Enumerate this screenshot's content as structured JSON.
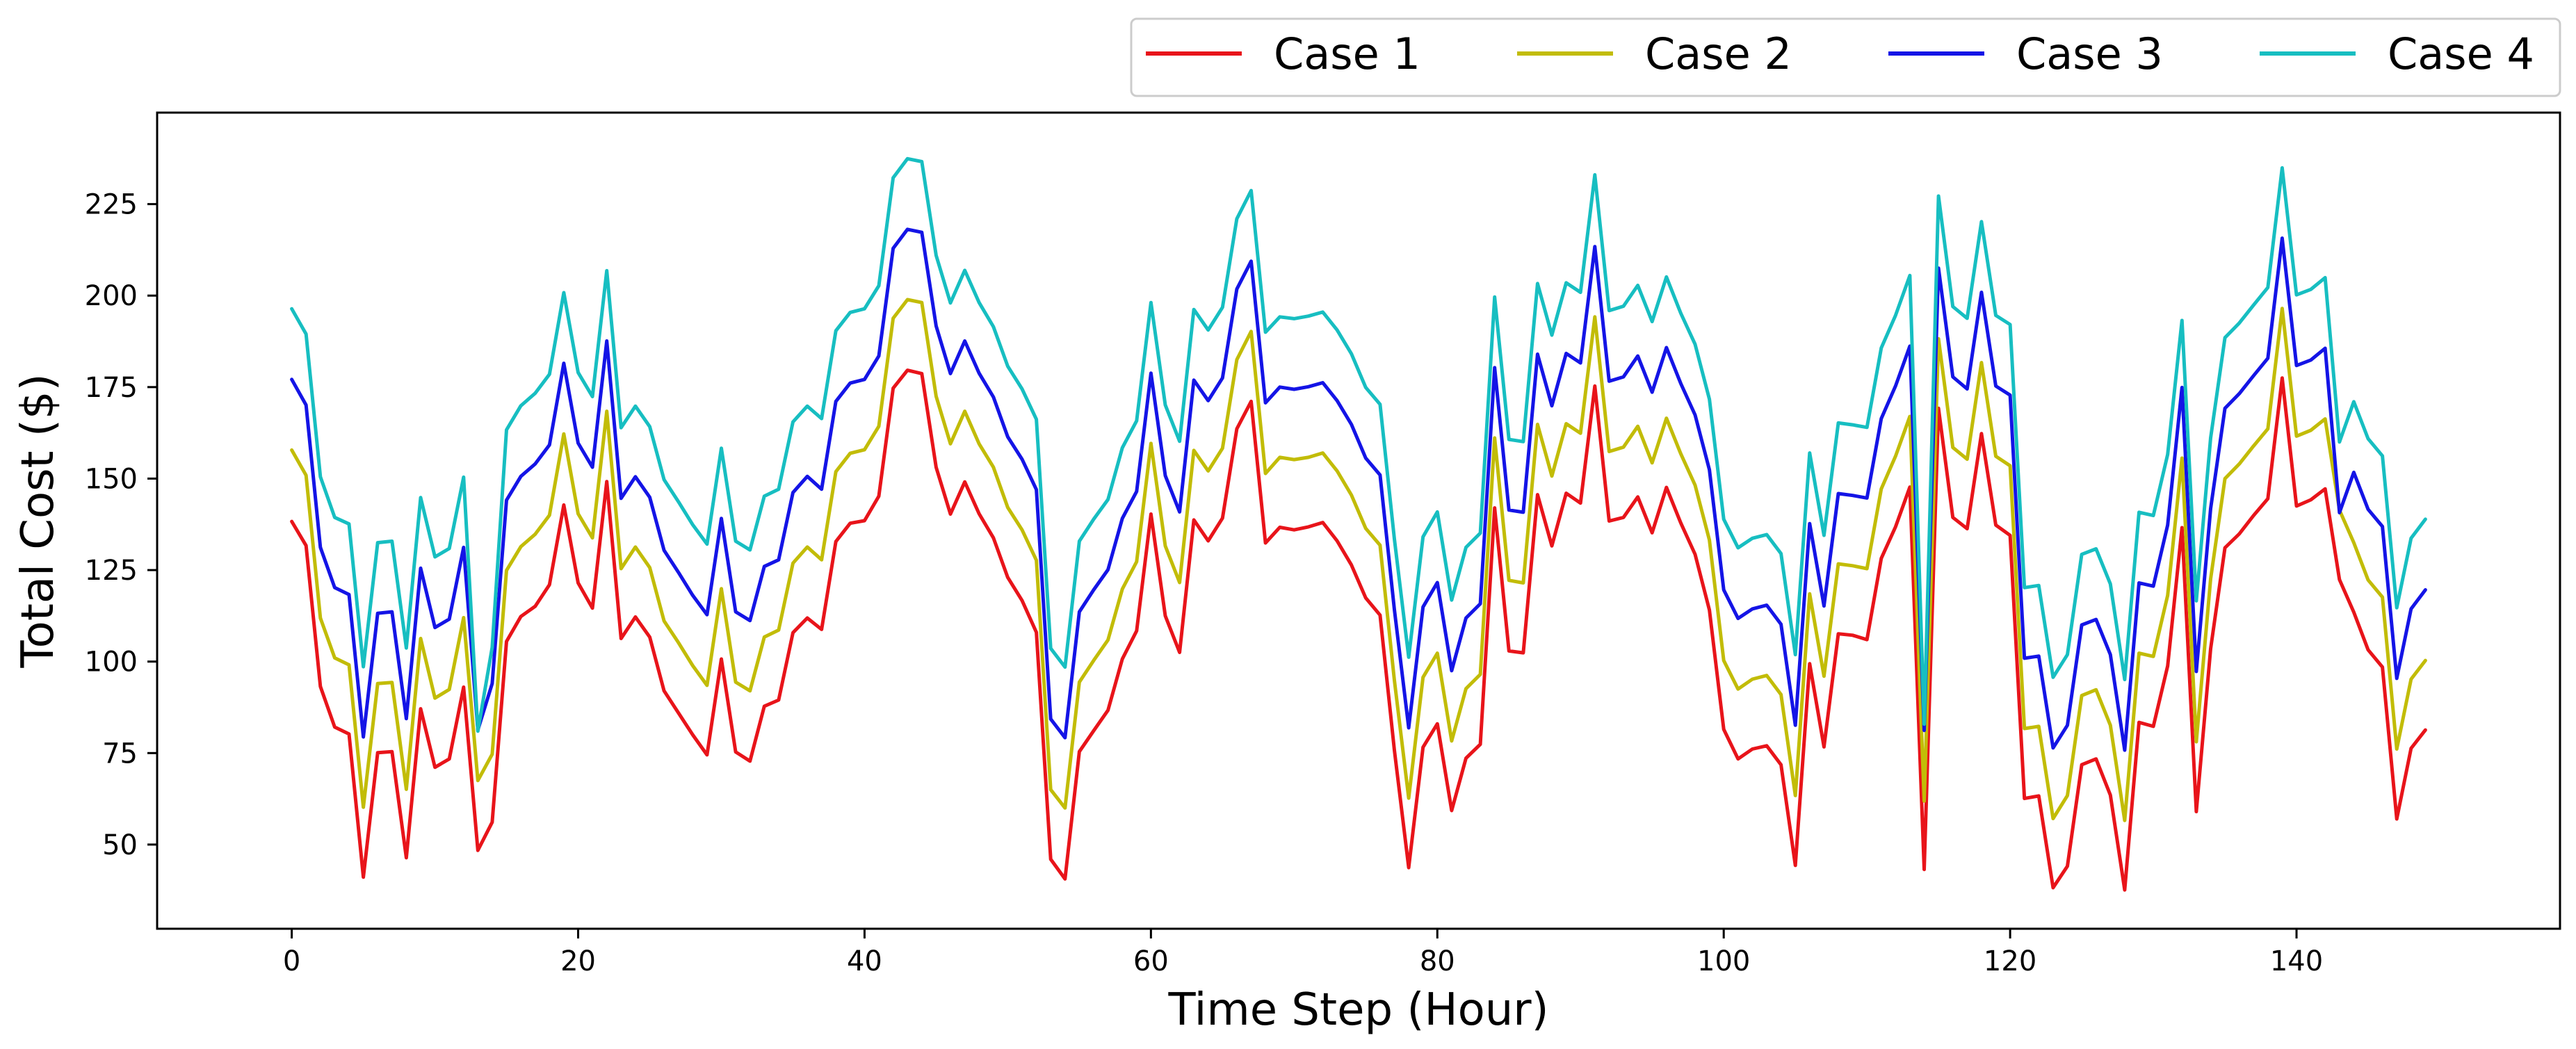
{
  "chart_data": {
    "type": "line",
    "title": "",
    "xlabel": "Time Step (Hour)",
    "ylabel": "Total Cost ($)",
    "xlim": [
      -9.4,
      158.4
    ],
    "ylim": [
      27,
      250
    ],
    "xticks": [
      0,
      20,
      40,
      60,
      80,
      100,
      120,
      140
    ],
    "yticks": [
      50,
      75,
      100,
      125,
      150,
      175,
      200,
      225
    ],
    "legend_position": "top-right, above plot",
    "grid": false,
    "series": [
      {
        "name": "Case 1",
        "color": "#e8141a",
        "values": [
          138.3,
          131.7,
          93.2,
          82.1,
          80.2,
          41.1,
          75.1,
          75.4,
          46.4,
          87.1,
          71.1,
          73.4,
          93,
          48.4,
          56.1,
          105.5,
          112.3,
          115.1,
          121,
          142.8,
          121.5,
          114.6,
          149.2,
          106.3,
          112.2,
          106.7,
          92,
          86,
          80,
          74.5,
          100.7,
          75.3,
          72.8,
          87.8,
          89.5,
          107.9,
          111.9,
          108.8,
          132.8,
          137.8,
          138.5,
          145.2,
          174.7,
          179.6,
          178.7,
          153.1,
          140.3,
          149.1,
          140.4,
          133.8,
          123,
          116.7,
          108,
          46,
          40.6,
          75.4,
          81.1,
          86.7,
          100.7,
          108.4,
          140.3,
          112.5,
          102.5,
          138.7,
          133,
          139.2,
          163.6,
          171.1,
          132.4,
          136.7,
          136,
          136.8,
          138,
          133,
          126.4,
          117.4,
          112.7,
          75.8,
          43.7,
          76.6,
          83,
          59.3,
          73.6,
          77.4,
          142,
          102.9,
          102.4,
          145.6,
          131.6,
          146,
          143.3,
          175.3,
          138.4,
          139.4,
          145,
          135.2,
          147.6,
          137.9,
          129.3,
          114.1,
          81.5,
          73.4,
          76.1,
          77,
          71.8,
          44.3,
          99.4,
          76.7,
          107.6,
          107.2,
          106,
          128.2,
          136.8,
          147.7,
          43.2,
          169.2,
          139.4,
          136.3,
          162.3,
          137.3,
          134.5,
          62.6,
          63.3,
          38.2,
          44.1,
          71.8,
          73.4,
          63.5,
          37.6,
          83.4,
          82.3,
          98.8,
          136.6,
          59,
          103.5,
          131.1,
          134.9,
          139.9,
          144.5,
          177.5,
          142.5,
          144.2,
          147.2,
          122.4,
          113.5,
          103.2,
          98.5,
          57,
          76.3,
          81.3
        ]
      },
      {
        "name": "Case 2",
        "color": "#c2bc07",
        "values": [
          157.8,
          150.9,
          111.9,
          101,
          99.1,
          60.2,
          94,
          94.3,
          65.1,
          106.3,
          90,
          92.4,
          112,
          67.5,
          74.7,
          124.9,
          131.4,
          134.8,
          140,
          162.2,
          140.4,
          133.8,
          168.4,
          125.4,
          131.3,
          125.7,
          111.1,
          105.2,
          98.9,
          93.5,
          119.9,
          94.4,
          92,
          106.7,
          108.6,
          126.9,
          131.3,
          127.8,
          151.9,
          156.9,
          157.9,
          164.3,
          193.8,
          198.9,
          198.1,
          172.5,
          159.5,
          168.4,
          159.5,
          153.1,
          142.1,
          136,
          127.7,
          65,
          60,
          94.4,
          100.3,
          105.9,
          119.8,
          127.3,
          159.6,
          131.6,
          121.6,
          157.7,
          152.1,
          158.3,
          182.5,
          190.2,
          151.4,
          155.8,
          155.2,
          155.8,
          157,
          152.1,
          145.5,
          136.4,
          131.8,
          94.9,
          62.7,
          95.7,
          102.3,
          78.3,
          92.6,
          96.5,
          161.1,
          122.2,
          121.5,
          164.8,
          150.7,
          165,
          162.4,
          194.2,
          157.4,
          158.6,
          164.3,
          154.3,
          166.5,
          156.8,
          148.2,
          133.2,
          100.3,
          92.5,
          95.2,
          96.2,
          91,
          63.4,
          118.5,
          96,
          126.7,
          126.2,
          125.4,
          147.2,
          156.1,
          167,
          61.9,
          188.2,
          158.5,
          155.3,
          181.7,
          156.1,
          153.5,
          81.7,
          82.3,
          57.1,
          63.4,
          90.7,
          92.3,
          82.6,
          56.6,
          102.3,
          101.4,
          118.1,
          155.6,
          78.1,
          122.6,
          150,
          154,
          158.9,
          163.6,
          196.5,
          161.6,
          163.2,
          166.3,
          141.4,
          132.5,
          122.3,
          117.6,
          76.1,
          95.2,
          100.3
        ]
      },
      {
        "name": "Case 3",
        "color": "#1414e6",
        "values": [
          177.1,
          170.1,
          131.2,
          120.2,
          118.3,
          79.4,
          113.2,
          113.6,
          84.4,
          125.5,
          109.3,
          111.6,
          131.2,
          81.3,
          94,
          144.1,
          150.6,
          154,
          159.2,
          181.5,
          159.7,
          153.1,
          187.6,
          144.6,
          150.5,
          144.9,
          130.4,
          124.4,
          118.1,
          112.8,
          139.1,
          113.6,
          111.2,
          126,
          127.8,
          146.2,
          150.6,
          147.1,
          171.1,
          176.1,
          177.1,
          183.5,
          212.9,
          218.1,
          217.3,
          191.7,
          178.7,
          187.6,
          178.8,
          172.3,
          161.4,
          155.3,
          147,
          84.3,
          79.2,
          113.6,
          119.6,
          125.1,
          139.1,
          146.5,
          178.8,
          150.8,
          140.9,
          176.9,
          171.3,
          177.5,
          201.8,
          209.4,
          170.7,
          175,
          174.4,
          175.1,
          176.2,
          171.3,
          164.8,
          155.6,
          151,
          114.2,
          81.9,
          114.9,
          121.6,
          97.5,
          111.9,
          115.8,
          180.3,
          141.4,
          140.8,
          184,
          169.9,
          184.2,
          181.6,
          213.4,
          176.6,
          177.8,
          183.5,
          173.6,
          185.8,
          176,
          167.4,
          152.4,
          119.6,
          111.8,
          114.4,
          115.4,
          110.2,
          82.6,
          137.7,
          115.2,
          145.9,
          145.4,
          144.7,
          166.4,
          175.3,
          186.2,
          81.2,
          207.5,
          177.8,
          174.5,
          200.9,
          175.3,
          172.8,
          100.9,
          101.5,
          76.4,
          82.6,
          110,
          111.5,
          101.9,
          75.8,
          121.5,
          120.6,
          137.3,
          174.9,
          97.3,
          141.8,
          169.2,
          173.2,
          178.1,
          182.9,
          215.7,
          180.9,
          182.4,
          185.6,
          140.7,
          151.7,
          141.6,
          136.9,
          95.4,
          114.4,
          119.6
        ]
      },
      {
        "name": "Case 4",
        "color": "#17bec1",
        "values": [
          196.4,
          189.5,
          150.5,
          139.4,
          137.6,
          98.6,
          132.5,
          132.9,
          103.7,
          144.8,
          128.6,
          130.9,
          150.4,
          81,
          103.9,
          163.3,
          169.9,
          173.3,
          178.5,
          200.8,
          179,
          172.4,
          206.8,
          163.9,
          169.8,
          164.2,
          149.7,
          143.7,
          137.4,
          132.1,
          158.3,
          132.9,
          130.5,
          145.2,
          147.1,
          165.5,
          169.8,
          166.4,
          190.4,
          195.4,
          196.4,
          202.7,
          232.2,
          237.4,
          236.6,
          211,
          198,
          206.9,
          198.1,
          191.5,
          180.7,
          174.5,
          166.2,
          103.6,
          98.5,
          132.9,
          138.9,
          144.3,
          158.4,
          165.8,
          198.1,
          170.1,
          160.2,
          196.2,
          190.6,
          196.8,
          221,
          228.7,
          190,
          194.2,
          193.7,
          194.4,
          195.5,
          190.6,
          184.1,
          174.9,
          170.3,
          133.5,
          101.2,
          134.1,
          140.9,
          116.8,
          131.2,
          135.1,
          199.6,
          160.7,
          160.1,
          203.3,
          189.2,
          203.5,
          200.9,
          233,
          195.9,
          197.1,
          202.8,
          192.9,
          205.1,
          195.2,
          186.7,
          171.7,
          138.9,
          131.1,
          133.7,
          134.7,
          129.5,
          101.9,
          157,
          134.5,
          165.2,
          164.7,
          164,
          185.7,
          194.6,
          205.5,
          82.9,
          227.2,
          197,
          193.8,
          220.2,
          194.6,
          192.1,
          120.2,
          120.8,
          95.7,
          101.9,
          129.3,
          130.8,
          121.2,
          95.1,
          140.8,
          139.9,
          156.6,
          193.2,
          116.6,
          161.1,
          188.5,
          192.5,
          197.4,
          202.2,
          234.9,
          200.2,
          201.7,
          204.9,
          160,
          171,
          160.9,
          156.2,
          114.7,
          133.7,
          138.9
        ]
      }
    ]
  }
}
